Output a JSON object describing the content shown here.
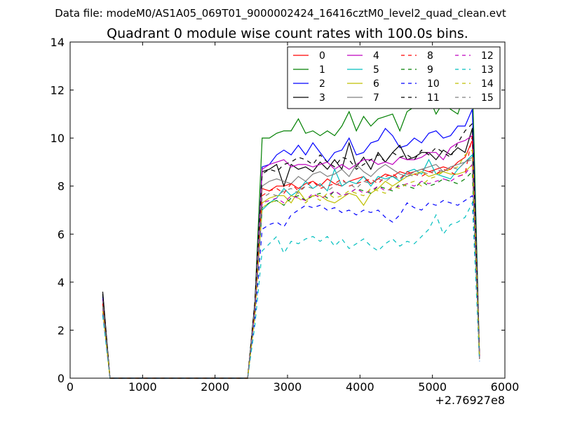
{
  "figure": {
    "suptitle": "Data file: modeM0/AS1A05_069T01_9000002424_16416cztM0_level2_quad_clean.evt"
  },
  "chart_data": {
    "type": "line",
    "title": "Quadrant 0 module wise count rates with 100.0s bins.",
    "xlabel": "",
    "ylabel": "",
    "x_offset_label": "+2.76927e8",
    "xlim": [
      0,
      6000
    ],
    "ylim": [
      0,
      14
    ],
    "x_ticks": [
      0,
      1000,
      2000,
      3000,
      4000,
      5000,
      6000
    ],
    "y_ticks": [
      0,
      2,
      4,
      6,
      8,
      10,
      12,
      14
    ],
    "x_tick_labels": [
      "0",
      "1000",
      "2000",
      "3000",
      "4000",
      "5000",
      "6000"
    ],
    "y_tick_labels": [
      "0",
      "2",
      "4",
      "6",
      "8",
      "10",
      "12",
      "14"
    ],
    "grid": false,
    "legend_placement": "top-right",
    "legend_columns": 4,
    "x": [
      450,
      550,
      650,
      750,
      850,
      950,
      1050,
      1150,
      1250,
      1350,
      1450,
      1550,
      1650,
      1750,
      1850,
      1950,
      2050,
      2150,
      2250,
      2350,
      2450,
      2550,
      2650,
      2750,
      2850,
      2950,
      3050,
      3150,
      3250,
      3350,
      3450,
      3550,
      3650,
      3750,
      3850,
      3950,
      4050,
      4150,
      4250,
      4350,
      4450,
      4550,
      4650,
      4750,
      4850,
      4950,
      5050,
      5150,
      5250,
      5350,
      5450,
      5550,
      5650
    ],
    "series": [
      {
        "name": "0",
        "color": "#ff0000",
        "dash": "solid",
        "values": [
          3.3,
          0,
          0,
          0,
          0,
          0,
          0,
          0,
          0,
          0,
          0,
          0,
          0,
          0,
          0,
          0,
          0,
          0,
          0,
          0,
          0,
          3.0,
          7.9,
          7.8,
          8.0,
          8.0,
          8.1,
          7.9,
          8.1,
          8.2,
          8.0,
          8.3,
          8.1,
          8.0,
          8.2,
          8.3,
          8.4,
          8.1,
          8.3,
          8.5,
          8.4,
          8.6,
          8.5,
          8.6,
          8.7,
          8.6,
          8.7,
          8.8,
          8.7,
          9.0,
          9.2,
          9.9,
          0.9
        ]
      },
      {
        "name": "1",
        "color": "#007f00",
        "dash": "solid",
        "values": [
          3.5,
          0,
          0,
          0,
          0,
          0,
          0,
          0,
          0,
          0,
          0,
          0,
          0,
          0,
          0,
          0,
          0,
          0,
          0,
          0,
          0,
          3.2,
          10.0,
          10.0,
          10.2,
          10.3,
          10.3,
          10.8,
          10.2,
          10.3,
          10.1,
          10.3,
          10.1,
          10.5,
          11.1,
          10.3,
          10.9,
          10.5,
          10.8,
          10.9,
          11.0,
          10.3,
          11.1,
          11.3,
          11.3,
          11.7,
          11.0,
          11.5,
          11.2,
          11.0,
          11.9,
          12.6,
          0.9
        ]
      },
      {
        "name": "2",
        "color": "#0000ff",
        "dash": "solid",
        "values": [
          3.4,
          0,
          0,
          0,
          0,
          0,
          0,
          0,
          0,
          0,
          0,
          0,
          0,
          0,
          0,
          0,
          0,
          0,
          0,
          0,
          0,
          3.1,
          8.8,
          8.9,
          9.3,
          9.5,
          9.3,
          9.7,
          9.3,
          9.8,
          9.4,
          9.0,
          9.4,
          9.5,
          10.0,
          9.3,
          9.4,
          9.8,
          9.9,
          10.4,
          10.1,
          9.6,
          9.7,
          10.0,
          9.8,
          10.2,
          10.3,
          10.0,
          10.1,
          10.5,
          10.5,
          11.2,
          0.8
        ]
      },
      {
        "name": "3",
        "color": "#000000",
        "dash": "solid",
        "values": [
          3.6,
          0,
          0,
          0,
          0,
          0,
          0,
          0,
          0,
          0,
          0,
          0,
          0,
          0,
          0,
          0,
          0,
          0,
          0,
          0,
          0,
          3.1,
          8.6,
          8.7,
          8.9,
          8.0,
          8.9,
          8.7,
          8.8,
          8.6,
          9.0,
          8.7,
          9.1,
          8.7,
          9.8,
          8.8,
          9.2,
          8.7,
          9.4,
          9.0,
          9.4,
          9.7,
          9.1,
          9.2,
          9.4,
          9.4,
          9.1,
          9.5,
          9.3,
          9.6,
          9.4,
          10.4,
          0.9
        ]
      },
      {
        "name": "4",
        "color": "#bf00bf",
        "dash": "solid",
        "values": [
          3.2,
          0,
          0,
          0,
          0,
          0,
          0,
          0,
          0,
          0,
          0,
          0,
          0,
          0,
          0,
          0,
          0,
          0,
          0,
          0,
          0,
          3.0,
          8.7,
          8.9,
          9.0,
          9.1,
          8.8,
          8.9,
          8.9,
          8.8,
          8.9,
          9.0,
          8.7,
          8.9,
          8.7,
          8.9,
          9.1,
          9.1,
          8.9,
          9.0,
          8.9,
          9.2,
          9.1,
          9.1,
          9.2,
          9.4,
          9.4,
          9.1,
          9.6,
          9.8,
          9.9,
          10.1,
          0.9
        ]
      },
      {
        "name": "5",
        "color": "#00bfbf",
        "dash": "solid",
        "values": [
          3.1,
          0,
          0,
          0,
          0,
          0,
          0,
          0,
          0,
          0,
          0,
          0,
          0,
          0,
          0,
          0,
          0,
          0,
          0,
          0,
          0,
          2.9,
          7.0,
          7.3,
          7.5,
          7.9,
          7.6,
          7.8,
          8.2,
          7.9,
          8.1,
          7.8,
          8.7,
          8.0,
          8.2,
          8.1,
          8.4,
          8.0,
          8.4,
          8.3,
          8.4,
          8.2,
          8.6,
          8.7,
          8.5,
          9.1,
          8.5,
          8.4,
          8.3,
          8.7,
          9.0,
          9.3,
          0.8
        ]
      },
      {
        "name": "6",
        "color": "#bfbf00",
        "dash": "solid",
        "values": [
          3.0,
          0,
          0,
          0,
          0,
          0,
          0,
          0,
          0,
          0,
          0,
          0,
          0,
          0,
          0,
          0,
          0,
          0,
          0,
          0,
          0,
          2.8,
          7.3,
          7.5,
          7.6,
          7.6,
          7.3,
          7.8,
          7.4,
          7.6,
          7.6,
          7.4,
          7.3,
          7.5,
          7.7,
          7.6,
          7.2,
          7.7,
          7.9,
          8.2,
          8.0,
          8.2,
          8.4,
          8.5,
          8.6,
          8.4,
          8.5,
          8.6,
          8.5,
          8.5,
          8.6,
          8.9,
          0.8
        ]
      },
      {
        "name": "7",
        "color": "#7f7f7f",
        "dash": "solid",
        "values": [
          3.2,
          0,
          0,
          0,
          0,
          0,
          0,
          0,
          0,
          0,
          0,
          0,
          0,
          0,
          0,
          0,
          0,
          0,
          0,
          0,
          0,
          3.0,
          8.0,
          8.2,
          8.3,
          8.2,
          8.1,
          8.4,
          8.2,
          8.5,
          8.6,
          8.4,
          8.5,
          8.7,
          8.4,
          8.9,
          8.6,
          8.4,
          8.7,
          8.9,
          8.7,
          8.5,
          8.4,
          8.6,
          8.7,
          8.8,
          8.9,
          8.6,
          8.8,
          8.9,
          9.0,
          9.2,
          0.8
        ]
      },
      {
        "name": "8",
        "color": "#ff0000",
        "dash": "dashed",
        "values": [
          3.1,
          0,
          0,
          0,
          0,
          0,
          0,
          0,
          0,
          0,
          0,
          0,
          0,
          0,
          0,
          0,
          0,
          0,
          0,
          0,
          0,
          2.9,
          7.6,
          7.8,
          7.9,
          7.7,
          8.1,
          7.8,
          8.0,
          8.2,
          7.9,
          8.0,
          8.1,
          8.3,
          8.0,
          8.1,
          8.2,
          8.3,
          8.1,
          8.4,
          8.5,
          8.3,
          8.6,
          8.5,
          8.4,
          8.6,
          8.5,
          8.7,
          8.6,
          8.4,
          8.5,
          10.1,
          0.8
        ]
      },
      {
        "name": "9",
        "color": "#007f00",
        "dash": "dashed",
        "values": [
          3.0,
          0,
          0,
          0,
          0,
          0,
          0,
          0,
          0,
          0,
          0,
          0,
          0,
          0,
          0,
          0,
          0,
          0,
          0,
          0,
          0,
          2.8,
          7.1,
          7.3,
          7.4,
          7.2,
          7.5,
          7.6,
          7.4,
          7.6,
          7.7,
          7.5,
          7.8,
          7.6,
          7.7,
          7.9,
          7.8,
          7.7,
          8.0,
          7.9,
          7.8,
          8.1,
          8.0,
          7.9,
          8.2,
          8.0,
          8.1,
          8.3,
          8.2,
          8.1,
          8.3,
          8.6,
          0.8
        ]
      },
      {
        "name": "10",
        "color": "#0000ff",
        "dash": "dashed",
        "values": [
          2.7,
          0,
          0,
          0,
          0,
          0,
          0,
          0,
          0,
          0,
          0,
          0,
          0,
          0,
          0,
          0,
          0,
          0,
          0,
          0,
          0,
          2.5,
          6.2,
          6.4,
          6.5,
          6.3,
          6.8,
          7.0,
          7.2,
          7.1,
          7.2,
          7.0,
          7.1,
          6.9,
          7.0,
          6.8,
          7.0,
          6.9,
          7.0,
          6.7,
          6.5,
          6.8,
          7.3,
          7.1,
          7.0,
          7.3,
          7.2,
          7.4,
          7.3,
          7.2,
          7.4,
          7.6,
          0.7
        ]
      },
      {
        "name": "11",
        "color": "#000000",
        "dash": "dashed",
        "values": [
          3.5,
          0,
          0,
          0,
          0,
          0,
          0,
          0,
          0,
          0,
          0,
          0,
          0,
          0,
          0,
          0,
          0,
          0,
          0,
          0,
          0,
          3.2,
          8.5,
          8.7,
          8.6,
          8.9,
          9.0,
          9.2,
          9.1,
          8.9,
          9.3,
          9.0,
          8.8,
          9.2,
          9.1,
          8.7,
          8.9,
          9.1,
          9.3,
          9.0,
          9.4,
          9.2,
          9.3,
          9.1,
          9.5,
          9.3,
          9.6,
          9.4,
          9.2,
          9.8,
          10.3,
          10.6,
          0.9
        ]
      },
      {
        "name": "12",
        "color": "#bf00bf",
        "dash": "dashed",
        "values": [
          2.9,
          0,
          0,
          0,
          0,
          0,
          0,
          0,
          0,
          0,
          0,
          0,
          0,
          0,
          0,
          0,
          0,
          0,
          0,
          0,
          0,
          2.8,
          7.3,
          7.4,
          7.5,
          7.3,
          7.6,
          7.5,
          7.4,
          7.7,
          7.5,
          7.6,
          7.8,
          7.6,
          7.7,
          7.9,
          7.7,
          7.8,
          8.0,
          7.8,
          7.9,
          8.0,
          8.1,
          8.0,
          8.2,
          8.1,
          8.2,
          8.3,
          8.2,
          8.4,
          8.5,
          8.9,
          0.8
        ]
      },
      {
        "name": "13",
        "color": "#00bfbf",
        "dash": "dashed",
        "values": [
          2.6,
          0,
          0,
          0,
          0,
          0,
          0,
          0,
          0,
          0,
          0,
          0,
          0,
          0,
          0,
          0,
          0,
          0,
          0,
          0,
          0,
          2.2,
          5.3,
          5.6,
          5.9,
          5.2,
          5.7,
          5.6,
          5.8,
          5.9,
          5.7,
          5.9,
          5.5,
          5.8,
          5.4,
          5.6,
          5.8,
          5.5,
          5.3,
          5.6,
          5.8,
          5.5,
          5.7,
          5.6,
          5.9,
          6.2,
          6.8,
          6.0,
          6.4,
          6.5,
          6.7,
          7.3,
          0.7
        ]
      },
      {
        "name": "14",
        "color": "#bfbf00",
        "dash": "dashed",
        "values": [
          2.8,
          0,
          0,
          0,
          0,
          0,
          0,
          0,
          0,
          0,
          0,
          0,
          0,
          0,
          0,
          0,
          0,
          0,
          0,
          0,
          0,
          2.6,
          7.1,
          7.3,
          7.4,
          7.2,
          7.6,
          7.5,
          7.3,
          7.6,
          7.4,
          7.7,
          7.5,
          7.6,
          7.8,
          7.7,
          7.6,
          7.9,
          7.8,
          7.7,
          8.0,
          7.9,
          8.1,
          8.2,
          8.0,
          8.3,
          8.4,
          8.6,
          8.7,
          8.8,
          9.3,
          9.5,
          0.8
        ]
      },
      {
        "name": "15",
        "color": "#7f7f7f",
        "dash": "dashed",
        "values": [
          3.0,
          0,
          0,
          0,
          0,
          0,
          0,
          0,
          0,
          0,
          0,
          0,
          0,
          0,
          0,
          0,
          0,
          0,
          0,
          0,
          0,
          2.9,
          7.5,
          7.7,
          7.6,
          7.8,
          7.9,
          7.7,
          8.0,
          7.9,
          8.1,
          7.8,
          8.0,
          8.2,
          8.1,
          7.9,
          8.2,
          8.1,
          8.3,
          8.2,
          8.4,
          8.3,
          8.5,
          8.4,
          8.6,
          8.5,
          8.7,
          8.6,
          8.8,
          8.7,
          9.0,
          9.1,
          0.8
        ]
      }
    ]
  }
}
